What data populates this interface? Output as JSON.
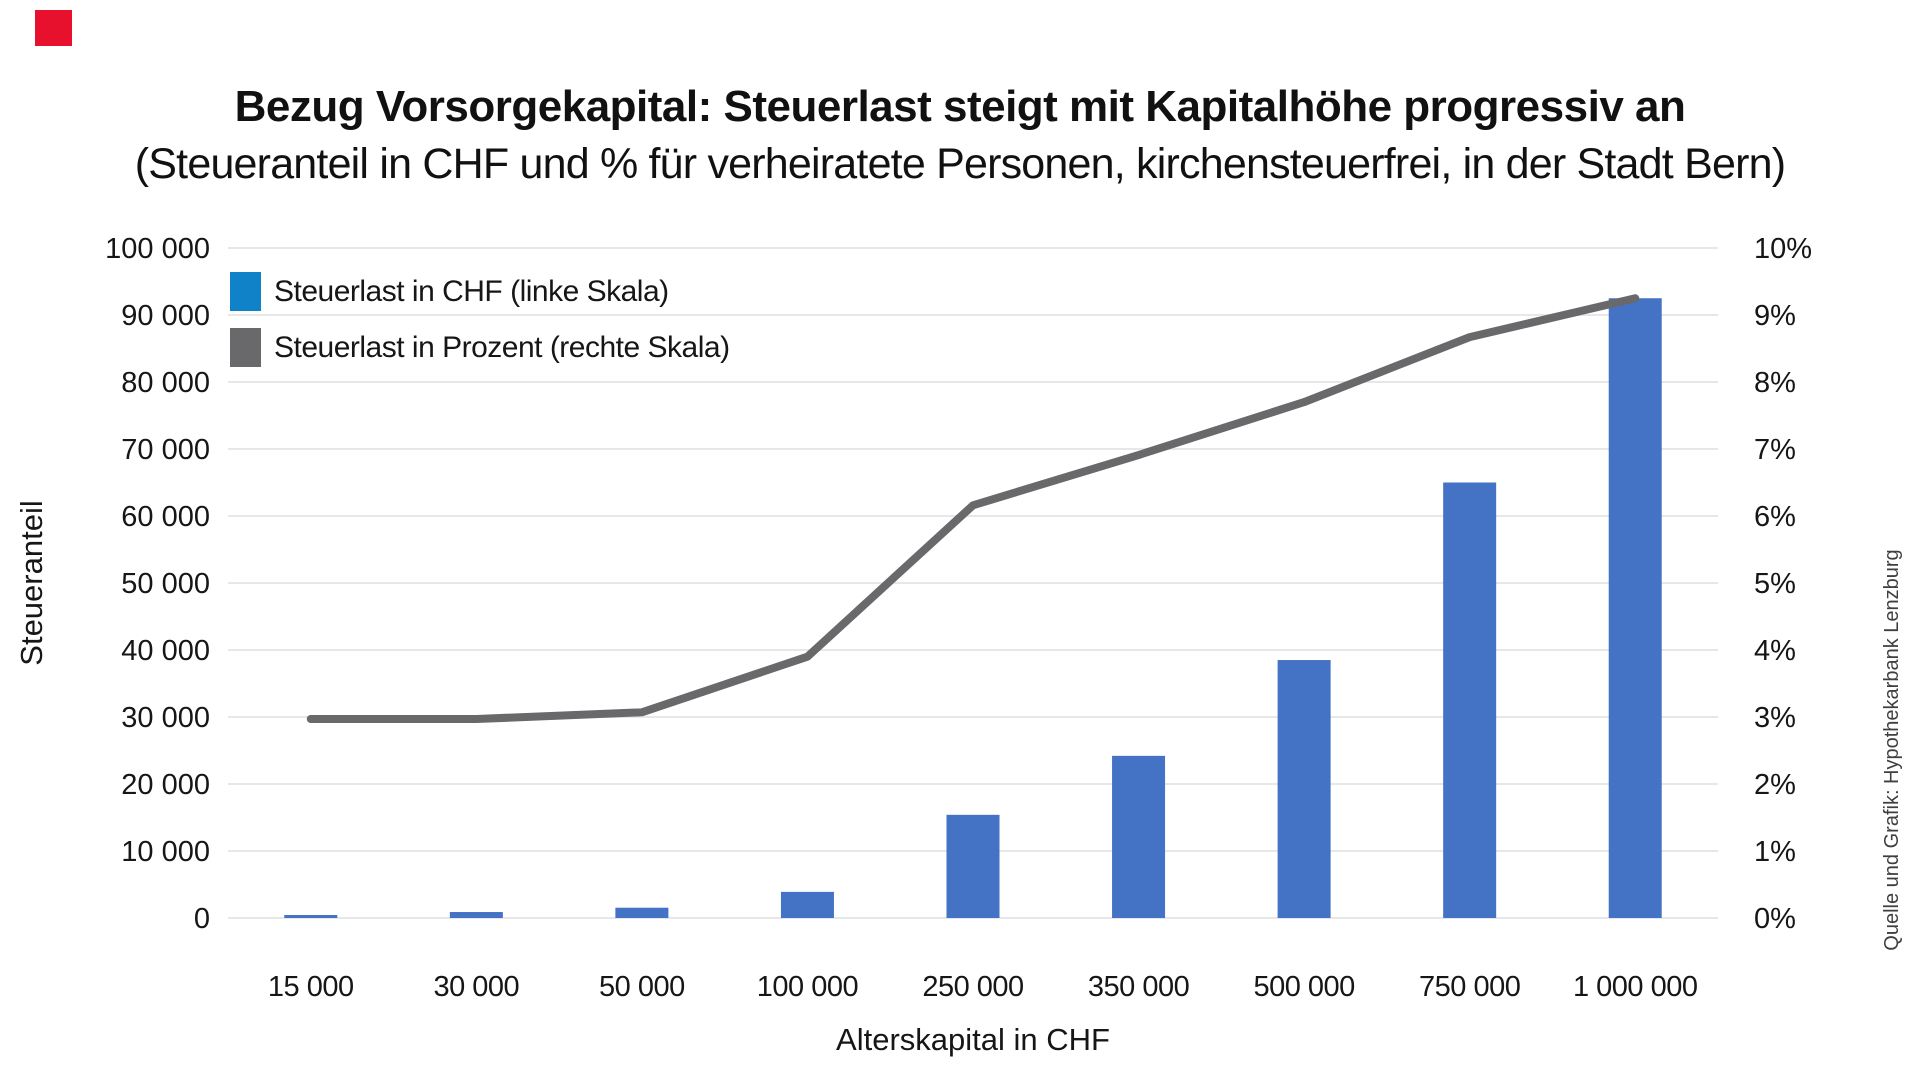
{
  "page": {
    "background": "#ffffff",
    "corner_mark_color": "#e8112d"
  },
  "legend": {
    "position": "top-left inside plot",
    "items": [
      {
        "label": "Steuerlast in CHF (linke Skala)",
        "swatch_color": "#0f82c8"
      },
      {
        "label": "Steuerlast in Prozent (rechte Skala)",
        "swatch_color": "#69696c"
      }
    ]
  },
  "chart_data": {
    "type": "bar",
    "subtype": "combo bar+line, dual y-axis",
    "title": "Bezug Vorsorgekapital: Steuerlast steigt mit Kapitalhöhe progressiv an",
    "subtitle": "(Steueranteil in CHF und % für verheiratete Personen, kirchensteuerfrei, in der Stadt Bern)",
    "source": "Quelle und Grafik: Hypothekarbank Lenzburg",
    "categories": [
      "15 000",
      "30 000",
      "50 000",
      "100 000",
      "250 000",
      "350 000",
      "500 000",
      "750 000",
      "1 000 000"
    ],
    "series": [
      {
        "name": "Steuerlast in CHF (linke Skala)",
        "type": "bar",
        "axis": "left",
        "color": "#4472c4",
        "values": [
          445,
          890,
          1535,
          3900,
          15400,
          24200,
          38500,
          65000,
          92500
        ]
      },
      {
        "name": "Steuerlast in Prozent (rechte Skala)",
        "type": "line",
        "axis": "right",
        "color": "#69696c",
        "values": [
          2.97,
          2.97,
          3.07,
          3.9,
          6.16,
          6.91,
          7.7,
          8.67,
          9.25
        ]
      }
    ],
    "xlabel": "Alterskapital in CHF",
    "ylabel_left": "Steueranteil",
    "ylabel_right": "",
    "y_axis_left": {
      "min": 0,
      "max": 100000,
      "tick_step": 10000,
      "tick_labels": [
        "0",
        "10 000",
        "20 000",
        "30 000",
        "40 000",
        "50 000",
        "60 000",
        "70 000",
        "80 000",
        "90 000",
        "100 000"
      ]
    },
    "y_axis_right": {
      "min": 0,
      "max": 10,
      "tick_step": 1,
      "tick_labels": [
        "0%",
        "1%",
        "2%",
        "3%",
        "4%",
        "5%",
        "6%",
        "7%",
        "8%",
        "9%",
        "10%"
      ]
    },
    "grid": "horizontal only",
    "gridline_color": "#e7e7e7",
    "legend_position": "top-left"
  }
}
